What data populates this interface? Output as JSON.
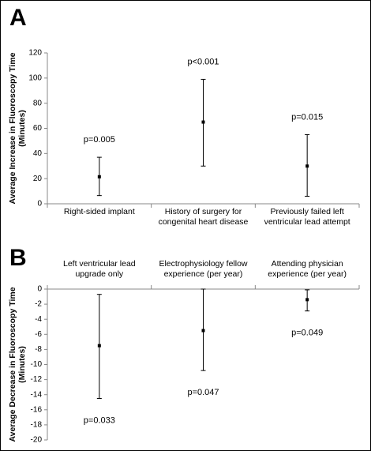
{
  "chart_data": [
    {
      "type": "errorbar",
      "title": "A",
      "ylabel": [
        "Average Increase in Fluoroscopy Time",
        "(Minutes)"
      ],
      "categories": [
        "Right-sided implant",
        "History of surgery for congenital heart disease",
        "Previously failed left ventricular lead attempt"
      ],
      "values": [
        21.5,
        65,
        30
      ],
      "lower": [
        6.5,
        30,
        6
      ],
      "upper": [
        37,
        99,
        55
      ],
      "annotations": [
        "p=0.005",
        "p<0.001",
        "p=0.015"
      ],
      "annotation_position": "above",
      "ylim": [
        0,
        120
      ],
      "yticks": [
        0,
        20,
        40,
        60,
        80,
        100,
        120
      ],
      "color": "#000000"
    },
    {
      "type": "errorbar",
      "title": "B",
      "ylabel": [
        "Average Decrease in Fluoroscopy Time",
        "(Minutes)"
      ],
      "categories": [
        "Left ventricular lead upgrade only",
        "Electrophysiology fellow experience (per year)",
        "Attending physician experience (per year)"
      ],
      "values": [
        -7.5,
        -5.5,
        -1.4
      ],
      "lower": [
        -14.5,
        -10.8,
        -2.9
      ],
      "upper": [
        -0.7,
        0,
        -0.1
      ],
      "annotations": [
        "p=0.033",
        "p=0.047",
        "p=0.049"
      ],
      "annotation_position": "below",
      "ylim": [
        -20,
        0
      ],
      "yticks": [
        -20,
        -18,
        -16,
        -14,
        -12,
        -10,
        -8,
        -6,
        -4,
        -2,
        0
      ],
      "color": "#000000"
    }
  ]
}
